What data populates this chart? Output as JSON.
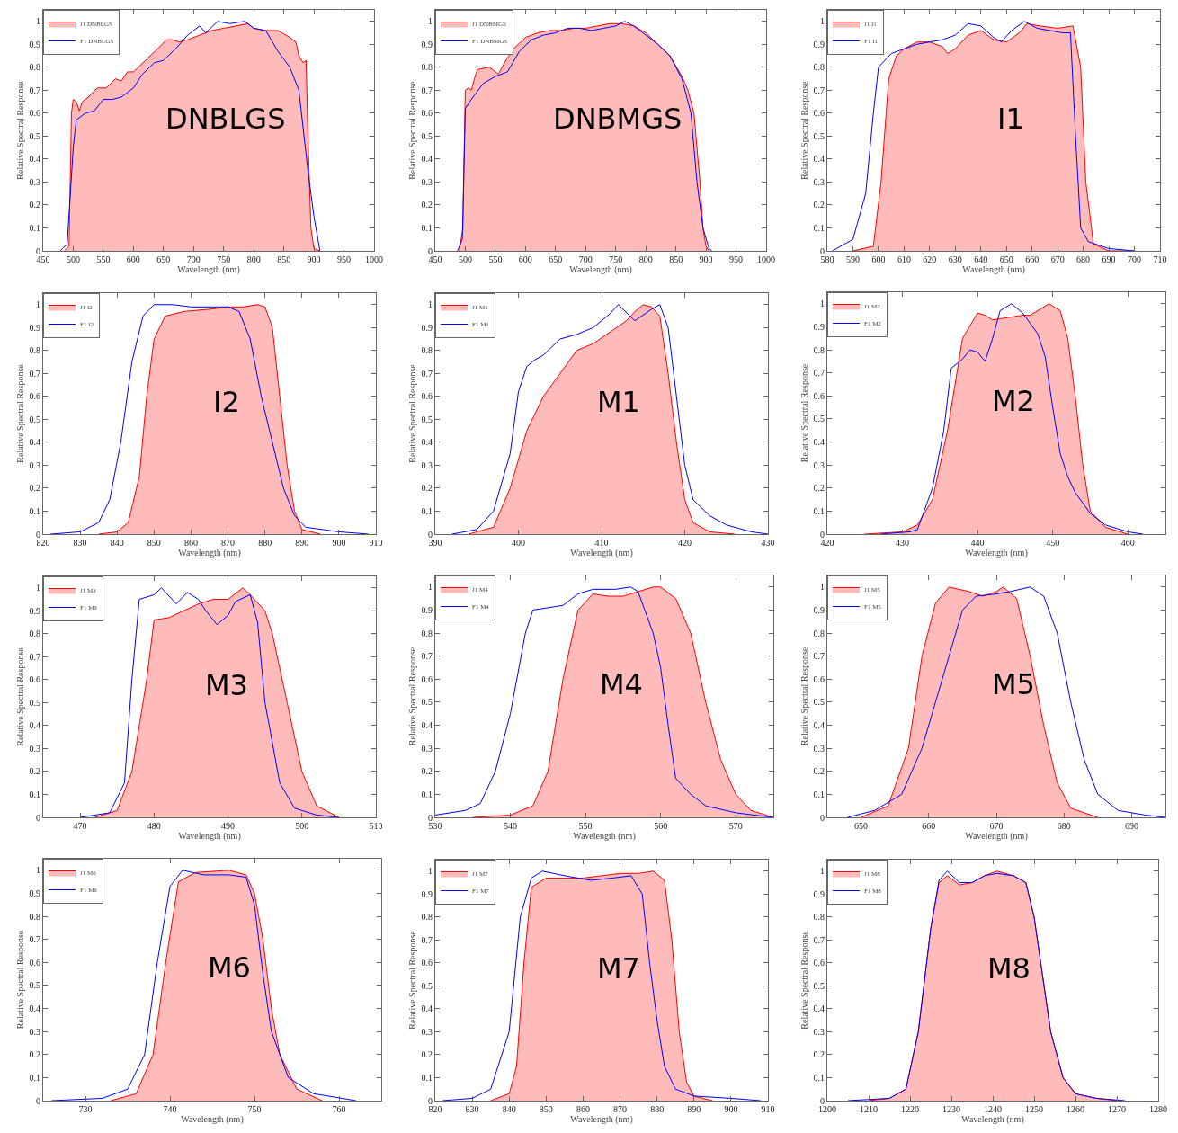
{
  "chart_data": [
    {
      "type": "line",
      "annotations": [
        "DNBLGS"
      ],
      "xlabel": "Wavelength (nm)",
      "ylabel": "Relative Spectral Response",
      "xlim": [
        450,
        1000
      ],
      "xticks": [
        450,
        500,
        550,
        600,
        650,
        700,
        750,
        800,
        850,
        900,
        950,
        1000
      ],
      "ylim": [
        0,
        1.05
      ],
      "yticks": [
        0,
        0.1,
        0.2,
        0.3,
        0.4,
        0.5,
        0.6,
        0.7,
        0.8,
        0.9,
        1
      ],
      "legend": "top left",
      "series": [
        {
          "name": "J1 DNBLGS",
          "type": "area",
          "color": "#ff0000",
          "x": [
            485,
            493,
            497,
            500,
            505,
            510,
            515,
            525,
            540,
            555,
            570,
            580,
            590,
            600,
            620,
            640,
            655,
            665,
            675,
            690,
            710,
            730,
            750,
            770,
            790,
            800,
            820,
            840,
            860,
            870,
            875,
            882,
            887,
            890,
            895,
            900,
            910
          ],
          "values": [
            0,
            0.02,
            0.6,
            0.66,
            0.65,
            0.61,
            0.65,
            0.67,
            0.71,
            0.71,
            0.75,
            0.74,
            0.78,
            0.78,
            0.83,
            0.88,
            0.92,
            0.92,
            0.91,
            0.92,
            0.94,
            0.96,
            0.97,
            0.98,
            0.99,
            0.97,
            0.96,
            0.96,
            0.93,
            0.91,
            0.85,
            0.82,
            0.83,
            0.5,
            0.1,
            0.01,
            0
          ]
        },
        {
          "name": "F1 DNBLGS",
          "type": "line",
          "color": "#0000ff",
          "x": [
            478,
            490,
            494,
            500,
            505,
            520,
            535,
            550,
            565,
            580,
            600,
            615,
            635,
            650,
            670,
            690,
            710,
            720,
            740,
            760,
            785,
            800,
            820,
            840,
            860,
            875,
            890,
            900,
            910
          ],
          "values": [
            0,
            0.03,
            0.2,
            0.45,
            0.57,
            0.6,
            0.61,
            0.66,
            0.66,
            0.67,
            0.71,
            0.77,
            0.82,
            0.83,
            0.88,
            0.94,
            0.98,
            0.95,
            1.0,
            0.99,
            1.0,
            0.97,
            0.96,
            0.87,
            0.8,
            0.7,
            0.35,
            0.15,
            0
          ]
        }
      ]
    },
    {
      "type": "line",
      "annotations": [
        "DNBMGS"
      ],
      "xlabel": "Wavelength (nm)",
      "ylabel": "Relative Spectral Response",
      "xlim": [
        450,
        1000
      ],
      "xticks": [
        450,
        500,
        550,
        600,
        650,
        700,
        750,
        800,
        850,
        900,
        950,
        1000
      ],
      "ylim": [
        0,
        1.05
      ],
      "yticks": [
        0,
        0.1,
        0.2,
        0.3,
        0.4,
        0.5,
        0.6,
        0.7,
        0.8,
        0.9,
        1
      ],
      "legend": "top left",
      "series": [
        {
          "name": "J1 DNBMGS",
          "type": "area",
          "color": "#ff0000",
          "x": [
            490,
            496,
            500,
            505,
            510,
            515,
            520,
            540,
            555,
            565,
            580,
            600,
            620,
            640,
            660,
            680,
            700,
            720,
            740,
            760,
            780,
            800,
            820,
            840,
            860,
            870,
            880,
            890,
            895,
            900,
            905
          ],
          "values": [
            0,
            0.1,
            0.7,
            0.71,
            0.7,
            0.75,
            0.79,
            0.8,
            0.77,
            0.82,
            0.88,
            0.93,
            0.95,
            0.96,
            0.96,
            0.97,
            0.97,
            0.98,
            0.99,
            0.99,
            0.98,
            0.95,
            0.9,
            0.85,
            0.76,
            0.7,
            0.6,
            0.3,
            0.1,
            0.02,
            0
          ]
        },
        {
          "name": "F1 DNBMGS",
          "type": "line",
          "color": "#0000ff",
          "x": [
            487,
            495,
            500,
            510,
            530,
            550,
            570,
            590,
            610,
            630,
            650,
            670,
            690,
            710,
            730,
            750,
            765,
            780,
            800,
            820,
            840,
            860,
            875,
            885,
            895,
            905,
            910
          ],
          "values": [
            0,
            0.05,
            0.62,
            0.66,
            0.73,
            0.76,
            0.78,
            0.87,
            0.92,
            0.94,
            0.95,
            0.97,
            0.97,
            0.96,
            0.97,
            0.98,
            1.0,
            0.98,
            0.94,
            0.9,
            0.85,
            0.75,
            0.6,
            0.3,
            0.1,
            0.01,
            0
          ]
        }
      ]
    },
    {
      "type": "line",
      "annotations": [
        "I1"
      ],
      "xlabel": "Wavelength (nm)",
      "ylabel": "Relative Spectral Response",
      "xlim": [
        580,
        710
      ],
      "xticks": [
        580,
        590,
        600,
        610,
        620,
        630,
        640,
        650,
        660,
        670,
        680,
        690,
        700,
        710
      ],
      "ylim": [
        0,
        1.05
      ],
      "yticks": [
        0,
        0.1,
        0.2,
        0.3,
        0.4,
        0.5,
        0.6,
        0.7,
        0.8,
        0.9,
        1
      ],
      "legend": "top left",
      "series": [
        {
          "name": "J1 I1",
          "type": "area",
          "color": "#ff0000",
          "x": [
            590,
            598,
            601,
            604,
            607,
            610,
            615,
            620,
            625,
            627,
            630,
            635,
            640,
            645,
            650,
            655,
            658,
            663,
            670,
            676,
            679,
            681,
            684,
            690,
            700
          ],
          "values": [
            0,
            0.02,
            0.3,
            0.75,
            0.85,
            0.88,
            0.91,
            0.91,
            0.89,
            0.86,
            0.88,
            0.94,
            0.96,
            0.92,
            0.91,
            0.95,
            0.99,
            0.98,
            0.97,
            0.98,
            0.8,
            0.3,
            0.03,
            0,
            0
          ]
        },
        {
          "name": "F1 I1",
          "type": "line",
          "color": "#0000ff",
          "x": [
            582,
            590,
            595,
            598,
            600,
            605,
            610,
            615,
            620,
            625,
            630,
            635,
            640,
            645,
            648,
            652,
            657,
            662,
            667,
            672,
            675,
            677,
            679,
            682,
            690,
            700
          ],
          "values": [
            0,
            0.05,
            0.25,
            0.6,
            0.8,
            0.86,
            0.88,
            0.9,
            0.91,
            0.92,
            0.94,
            0.99,
            0.98,
            0.93,
            0.91,
            0.96,
            1.0,
            0.97,
            0.96,
            0.95,
            0.95,
            0.5,
            0.1,
            0.04,
            0.01,
            0
          ]
        }
      ]
    },
    {
      "type": "line",
      "annotations": [
        "I2"
      ],
      "xlabel": "Wavelength (nm)",
      "ylabel": "Relative Spectral Response",
      "xlim": [
        820,
        910
      ],
      "xticks": [
        820,
        830,
        840,
        850,
        860,
        870,
        880,
        890,
        900,
        910
      ],
      "ylim": [
        0,
        1.05
      ],
      "yticks": [
        0,
        0.1,
        0.2,
        0.3,
        0.4,
        0.5,
        0.6,
        0.7,
        0.8,
        0.9,
        1
      ],
      "legend": "top left",
      "series": [
        {
          "name": "J1 I2",
          "type": "area",
          "color": "#ff0000",
          "x": [
            835,
            840,
            843,
            846,
            848,
            850,
            853,
            858,
            865,
            870,
            874,
            878,
            880,
            882,
            884,
            886,
            888,
            890,
            895
          ],
          "values": [
            0,
            0.01,
            0.05,
            0.25,
            0.6,
            0.85,
            0.95,
            0.97,
            0.98,
            0.99,
            0.99,
            1.0,
            0.99,
            0.9,
            0.6,
            0.3,
            0.1,
            0.02,
            0
          ]
        },
        {
          "name": "F1 I2",
          "type": "line",
          "color": "#0000ff",
          "x": [
            822,
            830,
            835,
            838,
            841,
            844,
            847,
            850,
            855,
            860,
            865,
            870,
            873,
            876,
            879,
            882,
            885,
            888,
            891,
            900,
            908
          ],
          "values": [
            0,
            0.01,
            0.05,
            0.15,
            0.4,
            0.75,
            0.95,
            1.0,
            1.0,
            0.99,
            0.99,
            0.99,
            0.97,
            0.85,
            0.6,
            0.4,
            0.2,
            0.08,
            0.03,
            0.01,
            0
          ]
        }
      ]
    },
    {
      "type": "line",
      "annotations": [
        "M1"
      ],
      "xlabel": "Wavelength (nm)",
      "ylabel": "Relative Spectral Response",
      "xlim": [
        390,
        430
      ],
      "xticks": [
        390,
        400,
        410,
        420,
        430
      ],
      "ylim": [
        0,
        1.05
      ],
      "yticks": [
        0,
        0.1,
        0.2,
        0.3,
        0.4,
        0.5,
        0.6,
        0.7,
        0.8,
        0.9,
        1
      ],
      "legend": "top left",
      "series": [
        {
          "name": "J1 M1",
          "type": "area",
          "color": "#ff0000",
          "x": [
            394,
            397,
            399,
            401,
            403,
            405,
            407,
            409,
            411,
            413,
            414,
            415,
            416,
            417,
            418,
            419,
            420,
            421,
            423,
            426
          ],
          "values": [
            0,
            0.03,
            0.2,
            0.45,
            0.6,
            0.7,
            0.8,
            0.83,
            0.88,
            0.93,
            0.97,
            1.0,
            0.99,
            0.95,
            0.7,
            0.4,
            0.15,
            0.05,
            0.01,
            0
          ]
        },
        {
          "name": "F1 M1",
          "type": "line",
          "color": "#0000ff",
          "x": [
            392,
            395,
            397,
            399,
            400,
            401,
            402,
            403,
            405,
            407,
            409,
            411,
            412,
            414,
            416,
            417,
            418,
            419,
            420,
            421,
            423,
            425,
            428,
            430
          ],
          "values": [
            0,
            0.02,
            0.1,
            0.35,
            0.62,
            0.73,
            0.76,
            0.78,
            0.85,
            0.87,
            0.9,
            0.96,
            1.0,
            0.93,
            0.98,
            1.0,
            0.9,
            0.6,
            0.3,
            0.15,
            0.08,
            0.04,
            0.01,
            0
          ]
        }
      ]
    },
    {
      "type": "line",
      "annotations": [
        "M2"
      ],
      "xlabel": "Wavelength (nm)",
      "ylabel": "Relative Spectral Response",
      "xlim": [
        420,
        465
      ],
      "xticks": [
        420,
        430,
        440,
        450,
        460
      ],
      "ylim": [
        0,
        1.05
      ],
      "yticks": [
        0,
        0.1,
        0.2,
        0.3,
        0.4,
        0.5,
        0.6,
        0.7,
        0.8,
        0.9,
        1
      ],
      "legend": "top left",
      "series": [
        {
          "name": "J1 M2",
          "type": "area",
          "color": "#ff0000",
          "x": [
            425,
            430,
            432,
            434,
            436,
            438,
            440,
            441,
            442,
            444,
            446,
            447,
            448,
            449.5,
            451,
            452,
            453,
            454,
            455,
            457,
            460
          ],
          "values": [
            0,
            0.01,
            0.04,
            0.15,
            0.45,
            0.85,
            0.96,
            0.95,
            0.93,
            0.94,
            0.95,
            0.95,
            0.97,
            1.0,
            0.97,
            0.85,
            0.6,
            0.3,
            0.1,
            0.03,
            0
          ]
        },
        {
          "name": "F1 M2",
          "type": "line",
          "color": "#0000ff",
          "x": [
            427,
            431,
            432,
            434,
            435.5,
            436.5,
            438,
            439,
            440,
            441,
            442,
            443,
            444.5,
            446,
            448,
            449,
            450,
            451,
            452,
            453,
            455,
            457,
            460,
            462
          ],
          "values": [
            0,
            0.01,
            0.02,
            0.2,
            0.45,
            0.72,
            0.76,
            0.8,
            0.79,
            0.75,
            0.85,
            0.97,
            1.0,
            0.96,
            0.87,
            0.77,
            0.55,
            0.35,
            0.25,
            0.18,
            0.09,
            0.04,
            0.01,
            0
          ]
        }
      ]
    },
    {
      "type": "line",
      "annotations": [
        "M3"
      ],
      "xlabel": "Wavelength (nm)",
      "ylabel": "Relative Spectral Response",
      "xlim": [
        465,
        510
      ],
      "xticks": [
        470,
        480,
        490,
        500,
        510
      ],
      "ylim": [
        0,
        1.05
      ],
      "yticks": [
        0,
        0.1,
        0.2,
        0.3,
        0.4,
        0.5,
        0.6,
        0.7,
        0.8,
        0.9,
        1
      ],
      "legend": "top left",
      "series": [
        {
          "name": "J1 M3",
          "type": "area",
          "color": "#ff0000",
          "x": [
            472,
            475,
            477,
            479,
            480,
            482,
            484,
            486,
            488,
            490,
            492,
            493,
            495,
            496,
            498,
            500,
            502,
            505
          ],
          "values": [
            0,
            0.03,
            0.2,
            0.6,
            0.86,
            0.87,
            0.9,
            0.93,
            0.95,
            0.95,
            1.0,
            0.97,
            0.9,
            0.8,
            0.5,
            0.2,
            0.05,
            0
          ]
        },
        {
          "name": "F1 M3",
          "type": "line",
          "color": "#0000ff",
          "x": [
            470,
            474,
            476,
            477,
            478,
            480,
            481,
            483,
            484.5,
            486,
            487,
            488.5,
            490,
            491,
            493,
            494,
            495,
            497,
            499,
            502,
            505
          ],
          "values": [
            0,
            0.02,
            0.15,
            0.6,
            0.95,
            0.97,
            1.0,
            0.93,
            0.98,
            0.95,
            0.9,
            0.84,
            0.88,
            0.94,
            0.97,
            0.85,
            0.5,
            0.15,
            0.04,
            0.01,
            0
          ]
        }
      ]
    },
    {
      "type": "line",
      "annotations": [
        "M4"
      ],
      "xlabel": "Wavelength (nm)",
      "ylabel": "Relative Spectral Response",
      "xlim": [
        530,
        575
      ],
      "xticks": [
        530,
        540,
        550,
        560,
        570
      ],
      "ylim": [
        0,
        1.05
      ],
      "yticks": [
        0,
        0.1,
        0.2,
        0.3,
        0.4,
        0.5,
        0.6,
        0.7,
        0.8,
        0.9,
        1
      ],
      "legend": "top left",
      "series": [
        {
          "name": "J1 M4",
          "type": "area",
          "color": "#ff0000",
          "x": [
            535,
            540,
            543,
            545,
            547,
            549,
            551,
            553,
            555,
            557,
            559,
            560,
            562,
            564,
            566,
            568,
            570,
            572,
            575
          ],
          "values": [
            0,
            0.01,
            0.05,
            0.2,
            0.6,
            0.9,
            0.97,
            0.96,
            0.96,
            0.98,
            1.0,
            1.0,
            0.95,
            0.8,
            0.5,
            0.25,
            0.1,
            0.03,
            0
          ]
        },
        {
          "name": "F1 M4",
          "type": "line",
          "color": "#0000ff",
          "x": [
            530,
            534,
            536,
            538,
            540,
            542,
            543,
            547,
            549,
            551,
            554,
            556,
            557,
            559,
            560,
            561,
            562,
            564,
            566,
            570,
            575
          ],
          "values": [
            0.01,
            0.03,
            0.06,
            0.2,
            0.45,
            0.8,
            0.9,
            0.92,
            0.97,
            0.99,
            0.99,
            1.0,
            0.98,
            0.8,
            0.65,
            0.4,
            0.17,
            0.1,
            0.05,
            0.02,
            0
          ]
        }
      ]
    },
    {
      "type": "line",
      "annotations": [
        "M5"
      ],
      "xlabel": "Wavelength (nm)",
      "ylabel": "Relative Spectral Response",
      "xlim": [
        645,
        695
      ],
      "xticks": [
        650,
        660,
        670,
        680,
        690
      ],
      "ylim": [
        0,
        1.05
      ],
      "yticks": [
        0,
        0.1,
        0.2,
        0.3,
        0.4,
        0.5,
        0.6,
        0.7,
        0.8,
        0.9,
        1
      ],
      "legend": "top left",
      "series": [
        {
          "name": "J1 M5",
          "type": "area",
          "color": "#ff0000",
          "x": [
            650,
            654,
            657,
            659,
            661,
            663,
            666,
            668,
            670,
            671,
            673,
            675,
            677,
            679,
            681,
            685
          ],
          "values": [
            0,
            0.05,
            0.3,
            0.7,
            0.93,
            1.0,
            0.98,
            0.96,
            0.98,
            1.0,
            0.95,
            0.7,
            0.4,
            0.15,
            0.04,
            0
          ]
        },
        {
          "name": "F1 M5",
          "type": "line",
          "color": "#0000ff",
          "x": [
            648,
            652,
            656,
            659,
            661,
            663,
            665,
            667,
            670,
            672,
            675,
            677,
            679,
            681,
            683,
            685,
            688,
            692,
            695
          ],
          "values": [
            0,
            0.03,
            0.1,
            0.3,
            0.5,
            0.7,
            0.9,
            0.96,
            0.97,
            0.98,
            1.0,
            0.96,
            0.8,
            0.5,
            0.25,
            0.1,
            0.03,
            0.01,
            0
          ]
        }
      ]
    },
    {
      "type": "line",
      "annotations": [
        "M6"
      ],
      "xlabel": "Wavelength (nm)",
      "ylabel": "Relative Spectral Response",
      "xlim": [
        725,
        765
      ],
      "xticks": [
        730,
        740,
        750,
        760
      ],
      "ylim": [
        0,
        1.05
      ],
      "yticks": [
        0,
        0.1,
        0.2,
        0.3,
        0.4,
        0.5,
        0.6,
        0.7,
        0.8,
        0.9,
        1
      ],
      "legend": "top left",
      "series": [
        {
          "name": "J1 M6",
          "type": "area",
          "color": "#ff0000",
          "x": [
            733,
            736,
            738,
            739.5,
            741,
            743,
            747,
            749,
            750,
            751,
            752,
            753,
            755,
            758
          ],
          "values": [
            0,
            0.03,
            0.2,
            0.6,
            0.95,
            0.99,
            1.0,
            0.98,
            0.9,
            0.7,
            0.4,
            0.2,
            0.05,
            0
          ]
        },
        {
          "name": "F1 M6",
          "type": "line",
          "color": "#0000ff",
          "x": [
            726,
            732,
            735,
            737,
            738.5,
            740,
            741.5,
            744,
            747,
            749,
            750,
            751,
            752,
            754,
            757,
            762
          ],
          "values": [
            0,
            0.01,
            0.05,
            0.2,
            0.6,
            0.93,
            1.0,
            0.98,
            0.98,
            0.97,
            0.85,
            0.55,
            0.3,
            0.1,
            0.03,
            0
          ]
        }
      ]
    },
    {
      "type": "line",
      "annotations": [
        "M7"
      ],
      "xlabel": "Wavelength (nm)",
      "ylabel": "Relative Spectral Response",
      "xlim": [
        820,
        910
      ],
      "xticks": [
        820,
        830,
        840,
        850,
        860,
        870,
        880,
        890,
        900,
        910
      ],
      "ylim": [
        0,
        1.05
      ],
      "yticks": [
        0,
        0.1,
        0.2,
        0.3,
        0.4,
        0.5,
        0.6,
        0.7,
        0.8,
        0.9,
        1
      ],
      "legend": "top left",
      "series": [
        {
          "name": "J1 M7",
          "type": "area",
          "color": "#ff0000",
          "x": [
            835,
            840,
            842,
            844,
            846,
            850,
            860,
            870,
            875,
            879,
            882,
            884,
            886,
            888,
            890,
            895
          ],
          "values": [
            0,
            0.03,
            0.15,
            0.6,
            0.93,
            0.97,
            0.97,
            0.99,
            0.99,
            1.0,
            0.96,
            0.7,
            0.3,
            0.08,
            0.02,
            0
          ]
        },
        {
          "name": "F1 M7",
          "type": "line",
          "color": "#0000ff",
          "x": [
            822,
            830,
            835,
            840,
            843,
            846,
            849,
            855,
            862,
            868,
            873,
            876,
            878,
            880,
            882,
            885,
            890,
            900,
            908
          ],
          "values": [
            0,
            0.01,
            0.05,
            0.3,
            0.8,
            0.97,
            1.0,
            0.98,
            0.96,
            0.97,
            0.98,
            0.9,
            0.6,
            0.35,
            0.15,
            0.05,
            0.02,
            0.01,
            0
          ]
        }
      ]
    },
    {
      "type": "line",
      "annotations": [
        "M8"
      ],
      "xlabel": "Wavelength (nm)",
      "ylabel": "Relative Spectral Response",
      "xlim": [
        1200,
        1280
      ],
      "xticks": [
        1200,
        1210,
        1220,
        1230,
        1240,
        1250,
        1260,
        1270,
        1280
      ],
      "ylim": [
        0,
        1.05
      ],
      "yticks": [
        0,
        0.1,
        0.2,
        0.3,
        0.4,
        0.5,
        0.6,
        0.7,
        0.8,
        0.9,
        1
      ],
      "legend": "top left",
      "series": [
        {
          "name": "J1 M8",
          "type": "area",
          "color": "#ff0000",
          "x": [
            1210,
            1215,
            1219,
            1222,
            1225,
            1227,
            1229,
            1232,
            1235,
            1238,
            1241,
            1245,
            1248,
            1250,
            1252,
            1254,
            1257,
            1260,
            1265,
            1270
          ],
          "values": [
            0,
            0.01,
            0.05,
            0.3,
            0.75,
            0.95,
            0.98,
            0.94,
            0.95,
            0.98,
            1.0,
            0.98,
            0.95,
            0.8,
            0.55,
            0.3,
            0.1,
            0.03,
            0.01,
            0
          ]
        },
        {
          "name": "F1 M8",
          "type": "line",
          "color": "#0000ff",
          "x": [
            1205,
            1215,
            1219,
            1222,
            1225,
            1227,
            1229,
            1232,
            1235,
            1238,
            1241,
            1245,
            1248,
            1250,
            1252,
            1254,
            1257,
            1260,
            1265,
            1272
          ],
          "values": [
            0,
            0.01,
            0.05,
            0.3,
            0.75,
            0.96,
            1.0,
            0.95,
            0.95,
            0.98,
            0.99,
            0.98,
            0.95,
            0.8,
            0.55,
            0.3,
            0.1,
            0.03,
            0.01,
            0
          ]
        }
      ]
    }
  ]
}
